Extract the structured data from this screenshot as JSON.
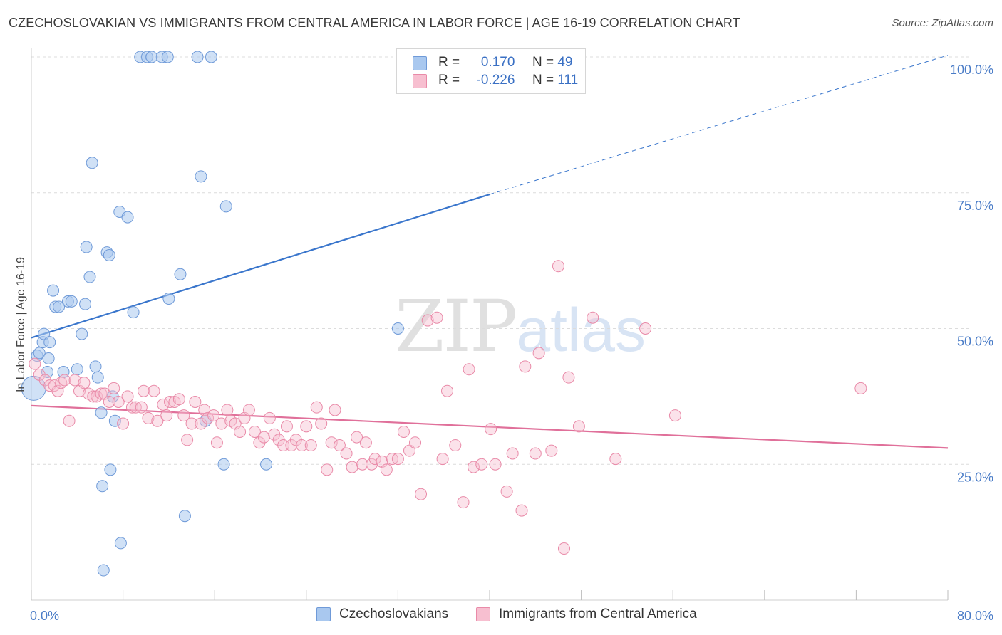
{
  "title": "CZECHOSLOVAKIAN VS IMMIGRANTS FROM CENTRAL AMERICA IN LABOR FORCE | AGE 16-19 CORRELATION CHART",
  "source": "Source: ZipAtlas.com",
  "watermark": {
    "part1": "ZIP",
    "part2": "atlas"
  },
  "legend": {
    "rows": [
      {
        "r_label": "R =",
        "r_value": "0.170",
        "n_label": "N =",
        "n_value": "49",
        "color": "#a9c8ef",
        "border": "#6f9ad8"
      },
      {
        "r_label": "R =",
        "r_value": "-0.226",
        "n_label": "N =",
        "n_value": "111",
        "color": "#f7bfd0",
        "border": "#e98aa8"
      }
    ]
  },
  "bottom_legend": [
    {
      "label": "Czechoslovakians",
      "color": "#a9c8ef",
      "border": "#6f9ad8"
    },
    {
      "label": "Immigrants from Central America",
      "color": "#f7bfd0",
      "border": "#e98aa8"
    }
  ],
  "chart_data": {
    "type": "scatter",
    "ylabel": "In Labor Force | Age 16-19",
    "xlim": [
      0,
      80
    ],
    "ylim": [
      0,
      100
    ],
    "x_tick_labels": [
      {
        "value": 0,
        "label": "0.0%"
      },
      {
        "value": 80,
        "label": "80.0%"
      }
    ],
    "y_tick_labels": [
      {
        "value": 100,
        "label": "100.0%"
      },
      {
        "value": 75,
        "label": "75.0%"
      },
      {
        "value": 50,
        "label": "50.0%"
      },
      {
        "value": 25,
        "label": "25.0%"
      }
    ],
    "x_minor_ticks": [
      0,
      8,
      16,
      24,
      32,
      40,
      48,
      56,
      64,
      72,
      80
    ],
    "gridlines": [
      100,
      75,
      50,
      25
    ],
    "colors": {
      "blue": "#3a76cc",
      "pink": "#e0709a",
      "axis_text": "#4a7cc7"
    },
    "series": [
      {
        "name": "Czechoslovakians",
        "points": [
          [
            0.2,
            39
          ],
          [
            0.5,
            45
          ],
          [
            0.7,
            45.5
          ],
          [
            1.0,
            47.5
          ],
          [
            1.1,
            49
          ],
          [
            1.4,
            42
          ],
          [
            1.5,
            44.5
          ],
          [
            1.6,
            47.5
          ],
          [
            1.9,
            57
          ],
          [
            2.1,
            54
          ],
          [
            2.4,
            54
          ],
          [
            2.8,
            42
          ],
          [
            3.2,
            55
          ],
          [
            3.5,
            55
          ],
          [
            4.0,
            42.5
          ],
          [
            4.4,
            49
          ],
          [
            4.7,
            54.5
          ],
          [
            4.8,
            65
          ],
          [
            5.1,
            59.5
          ],
          [
            5.3,
            80.5
          ],
          [
            5.6,
            43
          ],
          [
            5.8,
            41
          ],
          [
            6.1,
            34.5
          ],
          [
            6.2,
            21
          ],
          [
            6.3,
            5.5
          ],
          [
            6.6,
            64
          ],
          [
            6.8,
            63.5
          ],
          [
            6.9,
            24
          ],
          [
            7.1,
            37.5
          ],
          [
            7.3,
            33
          ],
          [
            7.7,
            71.5
          ],
          [
            7.8,
            10.5
          ],
          [
            8.4,
            70.5
          ],
          [
            8.9,
            53
          ],
          [
            9.5,
            100
          ],
          [
            10.1,
            100
          ],
          [
            10.5,
            100
          ],
          [
            11.4,
            100
          ],
          [
            11.9,
            100
          ],
          [
            12.0,
            55.5
          ],
          [
            13.0,
            60
          ],
          [
            13.4,
            15.5
          ],
          [
            14.5,
            100
          ],
          [
            14.8,
            78
          ],
          [
            15.2,
            33
          ],
          [
            15.7,
            100
          ],
          [
            16.8,
            25
          ],
          [
            17.0,
            72.5
          ],
          [
            20.5,
            25
          ],
          [
            32.0,
            50
          ]
        ]
      },
      {
        "name": "Immigrants from Central America",
        "points": [
          [
            0.3,
            43.5
          ],
          [
            0.7,
            41.5
          ],
          [
            1.2,
            40.5
          ],
          [
            1.6,
            39.5
          ],
          [
            2.0,
            39.5
          ],
          [
            2.3,
            38.5
          ],
          [
            2.6,
            40
          ],
          [
            2.9,
            40.5
          ],
          [
            3.3,
            33
          ],
          [
            3.8,
            40.5
          ],
          [
            4.2,
            38.5
          ],
          [
            4.6,
            40
          ],
          [
            5.0,
            38
          ],
          [
            5.4,
            37.5
          ],
          [
            5.7,
            37.5
          ],
          [
            6.1,
            38
          ],
          [
            6.4,
            38
          ],
          [
            6.8,
            36.5
          ],
          [
            7.2,
            39
          ],
          [
            7.6,
            36.5
          ],
          [
            8.0,
            32.5
          ],
          [
            8.4,
            37.5
          ],
          [
            8.8,
            35.5
          ],
          [
            9.1,
            35.5
          ],
          [
            9.6,
            35.5
          ],
          [
            9.8,
            38.5
          ],
          [
            10.2,
            33.5
          ],
          [
            10.7,
            38.5
          ],
          [
            11.0,
            33
          ],
          [
            11.5,
            36
          ],
          [
            11.8,
            34
          ],
          [
            12.1,
            36.5
          ],
          [
            12.5,
            36.5
          ],
          [
            12.9,
            37
          ],
          [
            13.3,
            34
          ],
          [
            13.6,
            29.5
          ],
          [
            14.0,
            32.5
          ],
          [
            14.3,
            36.5
          ],
          [
            14.8,
            32.5
          ],
          [
            15.1,
            35
          ],
          [
            15.4,
            33.5
          ],
          [
            15.9,
            34
          ],
          [
            16.2,
            29
          ],
          [
            16.6,
            32.5
          ],
          [
            17.1,
            35
          ],
          [
            17.4,
            33
          ],
          [
            17.8,
            32.5
          ],
          [
            18.2,
            31
          ],
          [
            18.6,
            33.5
          ],
          [
            19.0,
            35
          ],
          [
            19.5,
            31
          ],
          [
            19.9,
            29
          ],
          [
            20.3,
            30
          ],
          [
            20.8,
            33.5
          ],
          [
            21.2,
            30.5
          ],
          [
            21.6,
            29.5
          ],
          [
            22.0,
            28.5
          ],
          [
            22.3,
            32
          ],
          [
            22.7,
            28.5
          ],
          [
            23.1,
            29.5
          ],
          [
            23.6,
            28.5
          ],
          [
            24.0,
            32
          ],
          [
            24.4,
            28.5
          ],
          [
            24.9,
            35.5
          ],
          [
            25.3,
            32.5
          ],
          [
            25.8,
            24
          ],
          [
            26.2,
            29
          ],
          [
            26.5,
            35
          ],
          [
            26.9,
            28.5
          ],
          [
            27.5,
            27
          ],
          [
            28.0,
            24.5
          ],
          [
            28.4,
            30
          ],
          [
            28.9,
            25
          ],
          [
            29.2,
            29
          ],
          [
            29.7,
            25
          ],
          [
            30.0,
            26
          ],
          [
            30.6,
            25.5
          ],
          [
            31.0,
            24
          ],
          [
            31.5,
            26
          ],
          [
            32.0,
            26
          ],
          [
            32.5,
            31
          ],
          [
            33.0,
            27.5
          ],
          [
            33.5,
            29
          ],
          [
            34.0,
            19.5
          ],
          [
            34.6,
            51.5
          ],
          [
            35.4,
            52
          ],
          [
            35.9,
            26
          ],
          [
            36.3,
            38.5
          ],
          [
            37.0,
            28.5
          ],
          [
            37.7,
            18
          ],
          [
            38.2,
            42.5
          ],
          [
            38.6,
            24.5
          ],
          [
            39.3,
            25
          ],
          [
            40.1,
            31.5
          ],
          [
            40.5,
            25
          ],
          [
            41.5,
            20
          ],
          [
            42.0,
            27
          ],
          [
            42.8,
            16.5
          ],
          [
            43.1,
            43
          ],
          [
            44.0,
            27
          ],
          [
            44.3,
            45.5
          ],
          [
            45.4,
            27.5
          ],
          [
            46.0,
            61.5
          ],
          [
            46.9,
            41
          ],
          [
            47.8,
            32
          ],
          [
            49.0,
            52
          ],
          [
            51.0,
            26
          ],
          [
            53.6,
            50
          ],
          [
            56.2,
            34
          ],
          [
            72.4,
            39
          ],
          [
            46.5,
            9.5
          ]
        ]
      }
    ],
    "trendlines": [
      {
        "series": "Czechoslovakians",
        "x1": 0,
        "y1": 48.3,
        "x2": 40,
        "y2": 74.7,
        "dashed_to_x": 80,
        "dashed_to_y": 100.3
      },
      {
        "series": "Immigrants from Central America",
        "x1": 0,
        "y1": 35.8,
        "x2": 80,
        "y2": 28.0
      }
    ]
  }
}
